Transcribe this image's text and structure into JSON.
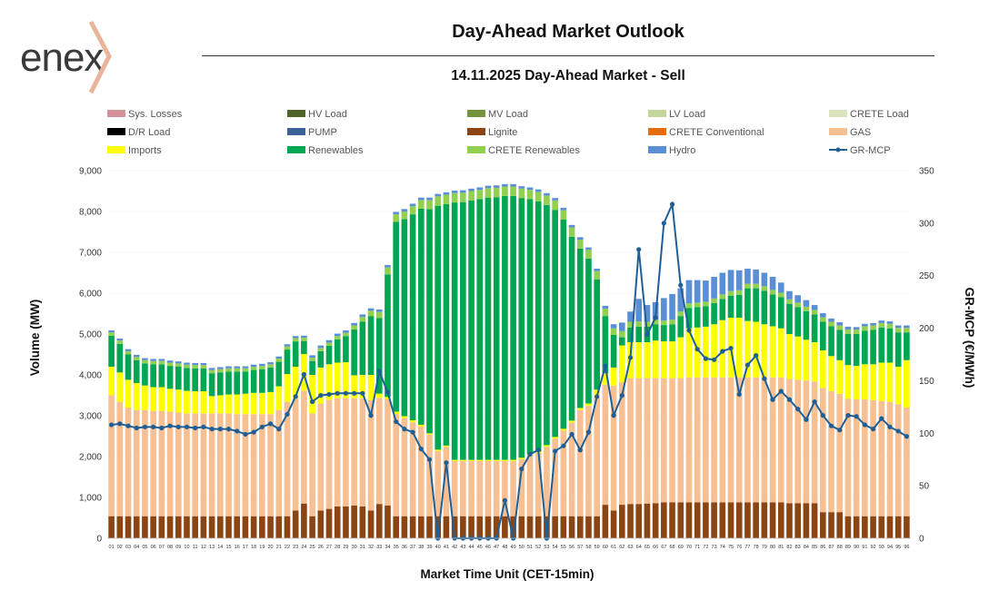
{
  "header": {
    "logo_text": "enex",
    "title": "Day-Ahead Market Outlook",
    "subtitle": "14.11.2025  Day-Ahead Market - Sell"
  },
  "chart_data": {
    "type": "bar",
    "stacked": true,
    "xlabel": "Market Time Unit (CET-15min)",
    "ylabel": "Volume (MW)",
    "y2label": "GR-MCP (€/MWh)",
    "ylim": [
      0,
      9000
    ],
    "y2lim": [
      0,
      350
    ],
    "yticks": [
      "0",
      "1,000",
      "2,000",
      "3,000",
      "4,000",
      "5,000",
      "6,000",
      "7,000",
      "8,000",
      "9,000"
    ],
    "y2ticks": [
      "0",
      "50",
      "100",
      "150",
      "200",
      "250",
      "300",
      "350"
    ],
    "categories": [
      "01",
      "02",
      "03",
      "04",
      "05",
      "06",
      "07",
      "08",
      "09",
      "10",
      "11",
      "12",
      "13",
      "14",
      "15",
      "16",
      "17",
      "18",
      "19",
      "20",
      "21",
      "22",
      "23",
      "24",
      "25",
      "26",
      "27",
      "28",
      "29",
      "30",
      "31",
      "32",
      "33",
      "34",
      "35",
      "36",
      "37",
      "38",
      "39",
      "40",
      "41",
      "42",
      "43",
      "44",
      "45",
      "46",
      "47",
      "48",
      "49",
      "50",
      "51",
      "52",
      "53",
      "54",
      "55",
      "56",
      "57",
      "58",
      "59",
      "60",
      "61",
      "62",
      "63",
      "64",
      "65",
      "66",
      "67",
      "68",
      "69",
      "70",
      "71",
      "72",
      "73",
      "74",
      "75",
      "76",
      "77",
      "78",
      "79",
      "80",
      "81",
      "82",
      "83",
      "84",
      "85",
      "86",
      "87",
      "88",
      "89",
      "90",
      "91",
      "92",
      "93",
      "94",
      "95",
      "96"
    ],
    "legend": [
      {
        "name": "Sys. Losses",
        "color": "#d4919a",
        "kind": "bar"
      },
      {
        "name": "HV Load",
        "color": "#4f6228",
        "kind": "bar"
      },
      {
        "name": "MV Load",
        "color": "#76923c",
        "kind": "bar"
      },
      {
        "name": "LV Load",
        "color": "#c3d69b",
        "kind": "bar"
      },
      {
        "name": "CRETE Load",
        "color": "#d7e4bd",
        "kind": "bar"
      },
      {
        "name": "D/R Load",
        "color": "#000000",
        "kind": "bar"
      },
      {
        "name": "PUMP",
        "color": "#3c6196",
        "kind": "bar"
      },
      {
        "name": "Lignite",
        "color": "#8b4513",
        "kind": "bar"
      },
      {
        "name": "CRETE Conventional",
        "color": "#e46c0a",
        "kind": "bar"
      },
      {
        "name": "GAS",
        "color": "#f7c092",
        "kind": "bar"
      },
      {
        "name": "Imports",
        "color": "#ffff00",
        "kind": "bar"
      },
      {
        "name": "Renewables",
        "color": "#00a651",
        "kind": "bar"
      },
      {
        "name": "CRETE Renewables",
        "color": "#92d050",
        "kind": "bar"
      },
      {
        "name": "Hydro",
        "color": "#5b8fd5",
        "kind": "bar"
      },
      {
        "name": "GR-MCP",
        "color": "#1f5f96",
        "kind": "line"
      }
    ],
    "series": [
      {
        "name": "Lignite",
        "values": [
          540,
          540,
          540,
          540,
          540,
          540,
          540,
          540,
          540,
          540,
          540,
          540,
          540,
          540,
          540,
          540,
          540,
          540,
          540,
          540,
          540,
          540,
          680,
          850,
          540,
          680,
          720,
          780,
          780,
          800,
          780,
          680,
          840,
          800,
          540,
          540,
          540,
          540,
          540,
          540,
          540,
          540,
          540,
          540,
          540,
          540,
          540,
          540,
          540,
          540,
          540,
          540,
          540,
          540,
          540,
          540,
          540,
          540,
          540,
          820,
          680,
          820,
          840,
          840,
          850,
          860,
          880,
          880,
          880,
          880,
          880,
          880,
          880,
          880,
          880,
          880,
          880,
          880,
          880,
          880,
          880,
          860,
          860,
          860,
          860,
          640,
          640,
          640,
          540,
          540,
          540,
          540,
          540,
          540,
          540,
          540
        ]
      },
      {
        "name": "GAS",
        "values": [
          2960,
          2800,
          2660,
          2600,
          2600,
          2580,
          2580,
          2560,
          2540,
          2520,
          2520,
          2520,
          2520,
          2520,
          2520,
          2500,
          2500,
          2500,
          2500,
          2500,
          2600,
          2800,
          2760,
          2760,
          2520,
          2620,
          2670,
          2650,
          2650,
          2630,
          2650,
          2700,
          2600,
          2600,
          2500,
          2400,
          2300,
          2200,
          2000,
          1600,
          1700,
          1350,
          1350,
          1350,
          1350,
          1350,
          1350,
          1350,
          1350,
          1400,
          1500,
          1550,
          1700,
          1900,
          2100,
          2300,
          2600,
          2700,
          2900,
          2940,
          3060,
          3000,
          3080,
          3080,
          3070,
          3060,
          3040,
          3040,
          3040,
          3060,
          3060,
          3060,
          3060,
          3060,
          3060,
          3060,
          3060,
          3060,
          3060,
          3060,
          3060,
          3040,
          3020,
          3000,
          2980,
          3040,
          2960,
          2900,
          2880,
          2860,
          2860,
          2840,
          2820,
          2800,
          2740,
          2660
        ]
      },
      {
        "name": "Imports",
        "values": [
          700,
          720,
          680,
          660,
          600,
          580,
          580,
          560,
          560,
          550,
          540,
          540,
          420,
          440,
          460,
          480,
          500,
          520,
          520,
          540,
          580,
          680,
          760,
          900,
          940,
          880,
          870,
          870,
          880,
          560,
          570,
          620,
          100,
          60,
          60,
          50,
          50,
          40,
          30,
          30,
          30,
          30,
          30,
          30,
          30,
          30,
          30,
          30,
          30,
          30,
          30,
          30,
          40,
          40,
          40,
          40,
          50,
          60,
          200,
          280,
          440,
          900,
          880,
          880,
          880,
          920,
          900,
          900,
          1000,
          1200,
          1220,
          1240,
          1300,
          1400,
          1460,
          1460,
          1380,
          1360,
          1300,
          1250,
          1200,
          1100,
          1060,
          1000,
          960,
          920,
          860,
          820,
          820,
          820,
          860,
          880,
          940,
          960,
          920,
          1160
        ]
      },
      {
        "name": "Renewables",
        "values": [
          760,
          700,
          620,
          560,
          540,
          560,
          560,
          560,
          560,
          560,
          560,
          560,
          560,
          560,
          560,
          560,
          540,
          560,
          580,
          600,
          600,
          600,
          620,
          320,
          340,
          400,
          450,
          570,
          640,
          1120,
          1300,
          1440,
          1850,
          3000,
          4650,
          4820,
          5040,
          5290,
          5490,
          5970,
          5910,
          6300,
          6310,
          6350,
          6380,
          6420,
          6430,
          6460,
          6460,
          6360,
          6230,
          6130,
          5880,
          5560,
          5120,
          4500,
          3900,
          3550,
          2700,
          1400,
          800,
          200,
          360,
          380,
          380,
          400,
          400,
          420,
          520,
          500,
          500,
          500,
          520,
          520,
          540,
          560,
          800,
          820,
          820,
          780,
          760,
          740,
          720,
          700,
          680,
          700,
          730,
          740,
          760,
          780,
          820,
          840,
          860,
          840,
          840,
          680
        ]
      },
      {
        "name": "CRETE Renewables",
        "values": [
          80,
          80,
          80,
          80,
          80,
          80,
          80,
          80,
          80,
          80,
          80,
          80,
          80,
          80,
          80,
          80,
          80,
          80,
          80,
          80,
          80,
          80,
          80,
          80,
          80,
          80,
          80,
          80,
          80,
          100,
          120,
          130,
          150,
          170,
          180,
          190,
          200,
          210,
          220,
          230,
          230,
          230,
          230,
          230,
          230,
          230,
          230,
          230,
          230,
          230,
          230,
          230,
          230,
          230,
          230,
          230,
          220,
          210,
          200,
          180,
          160,
          150,
          140,
          130,
          120,
          110,
          110,
          110,
          110,
          110,
          110,
          110,
          110,
          110,
          110,
          110,
          110,
          110,
          110,
          110,
          110,
          110,
          110,
          110,
          110,
          110,
          110,
          110,
          110,
          110,
          110,
          110,
          110,
          110,
          110,
          110
        ]
      },
      {
        "name": "Hydro",
        "values": [
          50,
          50,
          50,
          50,
          50,
          50,
          50,
          50,
          50,
          50,
          50,
          50,
          50,
          50,
          50,
          50,
          50,
          50,
          50,
          50,
          50,
          50,
          50,
          50,
          60,
          60,
          60,
          60,
          60,
          60,
          60,
          60,
          60,
          60,
          60,
          60,
          60,
          60,
          60,
          60,
          60,
          60,
          60,
          60,
          60,
          60,
          60,
          60,
          60,
          60,
          60,
          60,
          60,
          60,
          60,
          60,
          60,
          60,
          60,
          70,
          100,
          210,
          250,
          550,
          410,
          430,
          550,
          630,
          570,
          570,
          550,
          520,
          530,
          530,
          520,
          490,
          370,
          350,
          330,
          320,
          250,
          200,
          180,
          160,
          120,
          100,
          80,
          80,
          70,
          60,
          60,
          60,
          60,
          60,
          60,
          60
        ]
      },
      {
        "name": "GR-MCP",
        "axis": "right",
        "values": [
          108,
          109,
          107,
          105,
          106,
          106,
          105,
          107,
          106,
          106,
          105,
          106,
          104,
          104,
          104,
          102,
          99,
          101,
          106,
          109,
          104,
          118,
          135,
          156,
          130,
          136,
          137,
          138,
          138,
          138,
          138,
          117,
          159,
          139,
          111,
          104,
          101,
          85,
          75,
          0,
          72,
          0,
          0,
          0,
          0,
          0,
          0,
          36,
          0,
          66,
          80,
          84,
          0,
          83,
          88,
          99,
          84,
          101,
          135,
          164,
          117,
          136,
          172,
          275,
          194,
          210,
          300,
          318,
          241,
          198,
          180,
          171,
          170,
          178,
          181,
          137,
          165,
          174,
          152,
          132,
          140,
          132,
          123,
          113,
          130,
          117,
          107,
          103,
          117,
          116,
          108,
          104,
          114,
          106,
          102,
          97
        ]
      }
    ]
  }
}
